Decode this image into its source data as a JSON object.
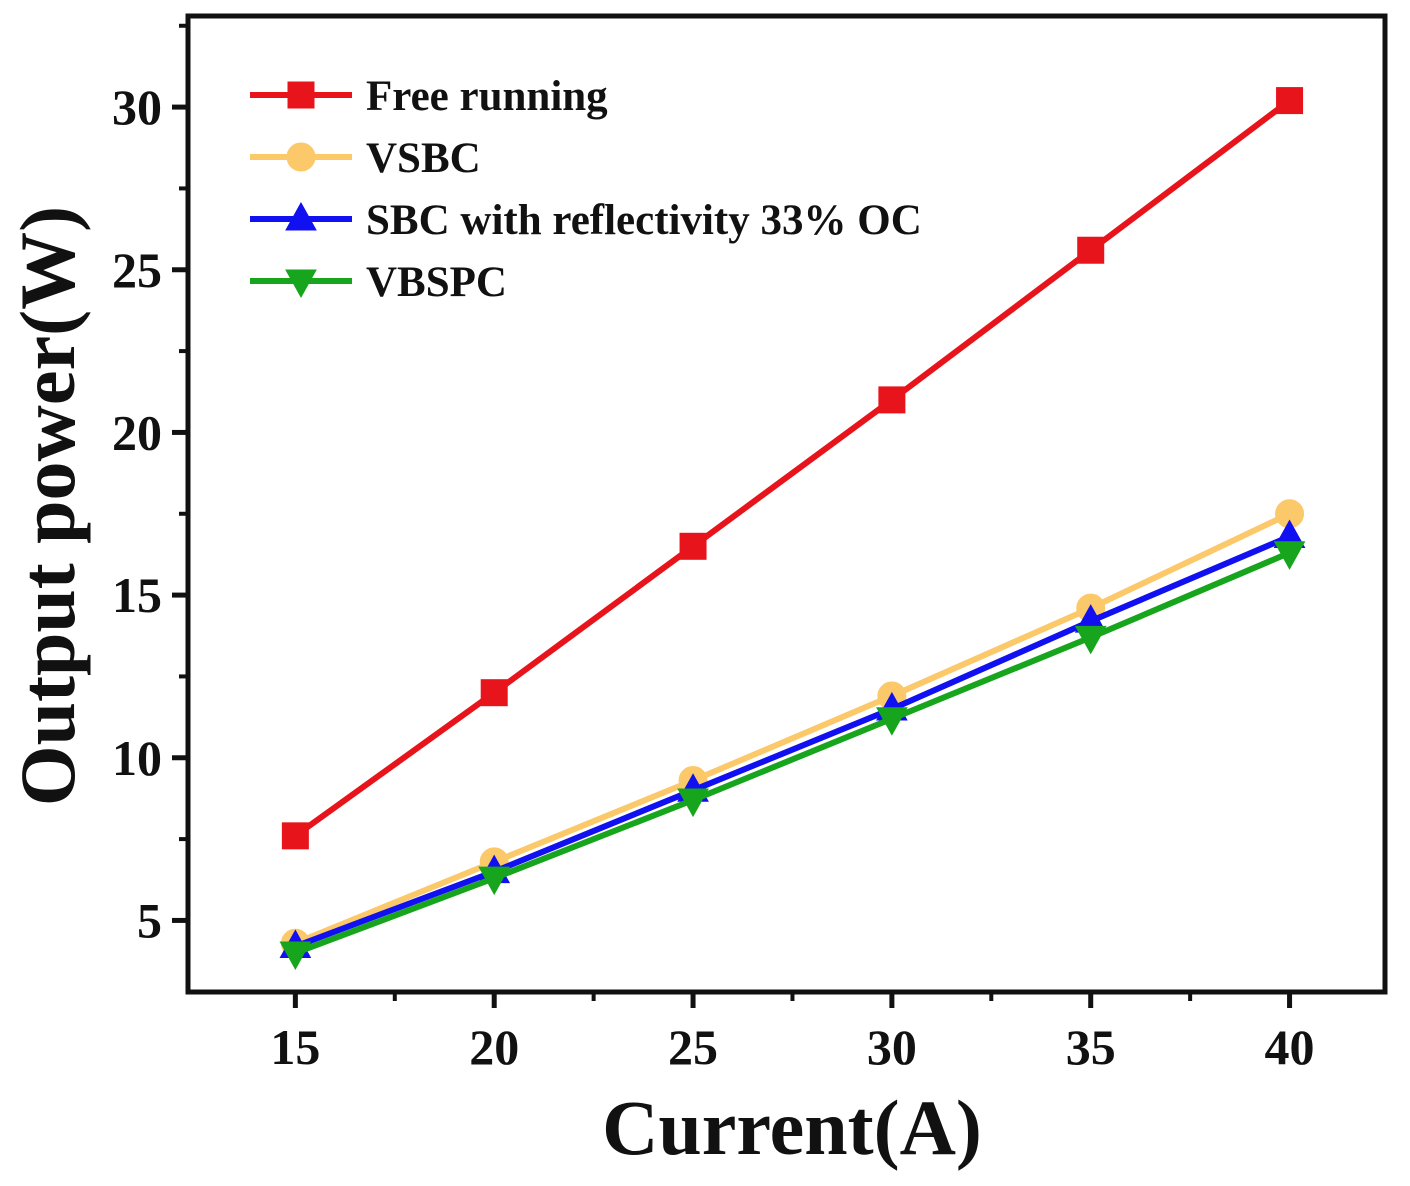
{
  "chart_data": {
    "type": "line",
    "title": "",
    "xlabel": "Current(A)",
    "ylabel": "Output power(W)",
    "x": [
      15,
      20,
      25,
      30,
      35,
      40
    ],
    "xlim": [
      12.3,
      42.4
    ],
    "ylim": [
      2.8,
      32.8
    ],
    "xticks": [
      "15",
      "20",
      "25",
      "30",
      "35",
      "40"
    ],
    "yticks": [
      "5",
      "10",
      "15",
      "20",
      "25",
      "30"
    ],
    "legend_position": "top-left",
    "series": [
      {
        "name": "Free running",
        "color": "#e8141b",
        "marker": "square",
        "values": [
          7.6,
          12.0,
          16.5,
          21.0,
          25.6,
          30.2
        ]
      },
      {
        "name": "VSBC",
        "color": "#fcc96a",
        "marker": "circle",
        "values": [
          4.3,
          6.8,
          9.3,
          11.9,
          14.6,
          17.5
        ]
      },
      {
        "name": "SBC with reflectivity 33% OC",
        "color": "#1010f0",
        "marker": "triangle-up",
        "values": [
          4.2,
          6.5,
          9.0,
          11.5,
          14.2,
          16.8
        ]
      },
      {
        "name": "VBSPC",
        "color": "#16a51c",
        "marker": "triangle-down",
        "values": [
          4.0,
          6.3,
          8.7,
          11.2,
          13.7,
          16.3
        ]
      }
    ]
  }
}
